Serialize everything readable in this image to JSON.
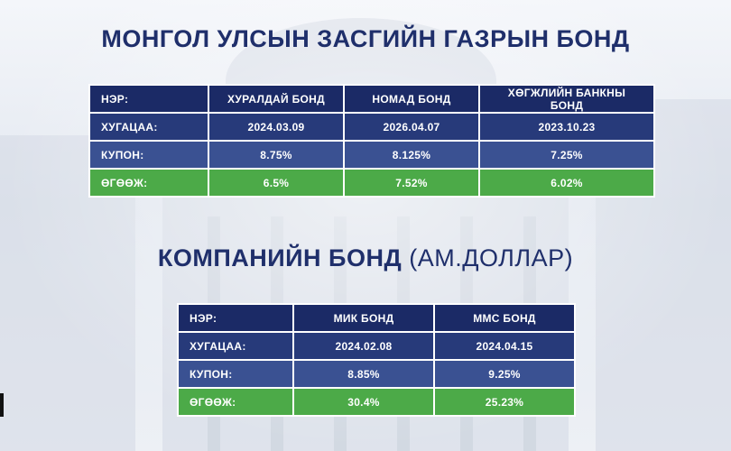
{
  "government": {
    "title": "МОНГОЛ УЛСЫН ЗАСГИЙН ГАЗРЫН БОНД",
    "labels": {
      "name": "НЭР:",
      "term": "ХУГАЦАА:",
      "coupon": "КУПОН:",
      "yield": "ӨГӨӨЖ:"
    },
    "bonds": [
      {
        "name": "ХУРАЛДАЙ БОНД",
        "term": "2024.03.09",
        "coupon": "8.75%",
        "yield": "6.5%"
      },
      {
        "name": "НОМАД БОНД",
        "term": "2026.04.07",
        "coupon": "8.125%",
        "yield": "7.52%"
      },
      {
        "name": "ХӨГЖЛИЙН БАНКНЫ БОНД",
        "term": "2023.10.23",
        "coupon": "7.25%",
        "yield": "6.02%"
      }
    ]
  },
  "corporate": {
    "title": "КОМПАНИЙН БОНД",
    "title_paren": "(АМ.ДОЛЛАР)",
    "labels": {
      "name": "НЭР:",
      "term": "ХУГАЦАА:",
      "coupon": "КУПОН:",
      "yield": "ӨГӨӨЖ:"
    },
    "bonds": [
      {
        "name": "МИК БОНД",
        "term": "2024.02.08",
        "coupon": "8.85%",
        "yield": "30.4%"
      },
      {
        "name": "ММС БОНД",
        "term": "2024.04.15",
        "coupon": "9.25%",
        "yield": "25.23%"
      }
    ]
  },
  "colors": {
    "title": "#1f2f6b",
    "header_row": "#1b2a66",
    "term_row": "#273a7a",
    "coupon_row": "#3a5192",
    "yield_row": "#4caa48"
  }
}
